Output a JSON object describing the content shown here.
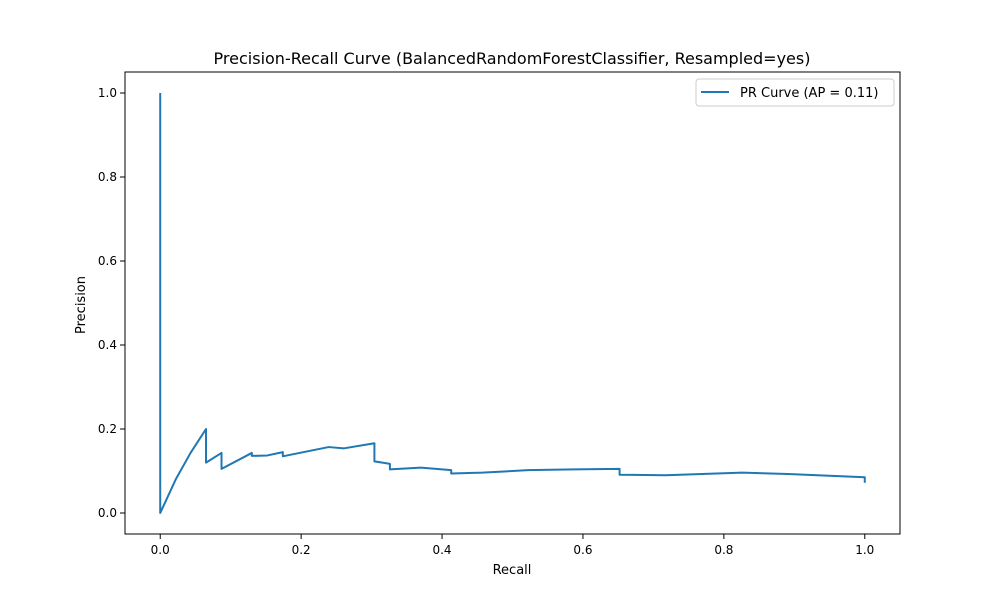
{
  "chart_data": {
    "type": "line",
    "title": "Precision-Recall Curve (BalancedRandomForestClassifier, Resampled=yes)",
    "xlabel": "Recall",
    "ylabel": "Precision",
    "xlim": [
      -0.05,
      1.05
    ],
    "ylim": [
      -0.05,
      1.05
    ],
    "xticks": [
      0.0,
      0.2,
      0.4,
      0.6,
      0.8,
      1.0
    ],
    "xtick_labels": [
      "0.0",
      "0.2",
      "0.4",
      "0.6",
      "0.8",
      "1.0"
    ],
    "yticks": [
      0.0,
      0.2,
      0.4,
      0.6,
      0.8,
      1.0
    ],
    "ytick_labels": [
      "0.0",
      "0.2",
      "0.4",
      "0.6",
      "0.8",
      "1.0"
    ],
    "grid": false,
    "legend_position": "top-right",
    "series": [
      {
        "name": "PR Curve (AP = 0.11)",
        "color": "#1f77b4",
        "x": [
          0.0,
          0.0,
          0.0,
          0.022,
          0.043,
          0.065,
          0.065,
          0.087,
          0.087,
          0.13,
          0.13,
          0.152,
          0.174,
          0.174,
          0.239,
          0.261,
          0.304,
          0.304,
          0.326,
          0.326,
          0.37,
          0.413,
          0.413,
          0.457,
          0.522,
          0.587,
          0.652,
          0.652,
          0.717,
          0.826,
          0.891,
          1.0,
          1.0
        ],
        "y": [
          1.0,
          0.0,
          0.0,
          0.08,
          0.143,
          0.2,
          0.12,
          0.143,
          0.105,
          0.143,
          0.136,
          0.137,
          0.145,
          0.135,
          0.157,
          0.154,
          0.166,
          0.123,
          0.117,
          0.104,
          0.108,
          0.102,
          0.094,
          0.096,
          0.102,
          0.104,
          0.105,
          0.091,
          0.09,
          0.096,
          0.093,
          0.085,
          0.072
        ]
      }
    ]
  }
}
